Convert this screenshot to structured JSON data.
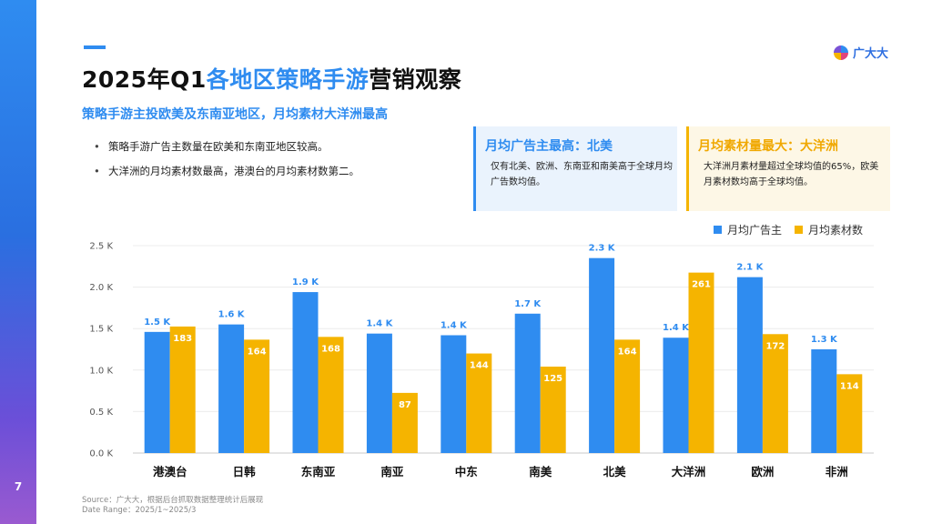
{
  "page": {
    "number": "7"
  },
  "header": {
    "title_prefix": "2025年Q1",
    "title_highlight": "各地区策略手游",
    "title_suffix": "营销观察",
    "subtitle": "策略手游主投欧美及东南亚地区，月均素材大洋洲最高",
    "logo_text": "广大大"
  },
  "bullets": [
    "策略手游广告主数量在欧美和东南亚地区较高。",
    "大洋洲的月均素材数最高，港澳台的月均素材数第二。"
  ],
  "cards": {
    "left": {
      "title": "月均广告主最高：北美",
      "body": "仅有北美、欧洲、东南亚和南美高于全球月均广告数均值。"
    },
    "right": {
      "title": "月均素材量最大：大洋洲",
      "body": "大洋洲月素材量超过全球均值的65%，欧美月素材数均高于全球均值。"
    }
  },
  "colors": {
    "blue": "#2f8cf0",
    "yellow": "#f5b400",
    "accent_purple": "#7a52d6"
  },
  "chart_data": {
    "type": "bar",
    "categories": [
      "港澳台",
      "日韩",
      "东南亚",
      "南亚",
      "中东",
      "南美",
      "北美",
      "大洋洲",
      "欧洲",
      "非洲"
    ],
    "series": [
      {
        "name": "月均广告主",
        "values": [
          1.5,
          1.6,
          1.9,
          1.4,
          1.4,
          1.7,
          2.3,
          1.4,
          2.1,
          1.3
        ],
        "plot_values": [
          1.46,
          1.55,
          1.94,
          1.44,
          1.42,
          1.68,
          2.35,
          1.39,
          2.12,
          1.25
        ],
        "labels": [
          "1.5 K",
          "1.6 K",
          "1.9 K",
          "1.4 K",
          "1.4 K",
          "1.7 K",
          "2.3 K",
          "1.4 K",
          "2.1 K",
          "1.3 K"
        ],
        "color": "#2f8cf0"
      },
      {
        "name": "月均素材数",
        "values": [
          183,
          164,
          168,
          87,
          144,
          125,
          164,
          261,
          172,
          114
        ],
        "labels": [
          "183",
          "164",
          "168",
          "87",
          "144",
          "125",
          "164",
          "261",
          "172",
          "114"
        ],
        "color": "#f5b400"
      }
    ],
    "ylim": [
      0,
      2.5
    ],
    "yticks": [
      "0.0 K",
      "0.5 K",
      "1.0 K",
      "1.5 K",
      "2.0 K",
      "2.5 K"
    ],
    "secondary_ylim": [
      0,
      300
    ],
    "grid": true,
    "legend": "top-right"
  },
  "source": {
    "line1": "Source：广大大，根据后台抓取数据整理统计后展现",
    "line2": "Date Range：2025/1~2025/3"
  }
}
